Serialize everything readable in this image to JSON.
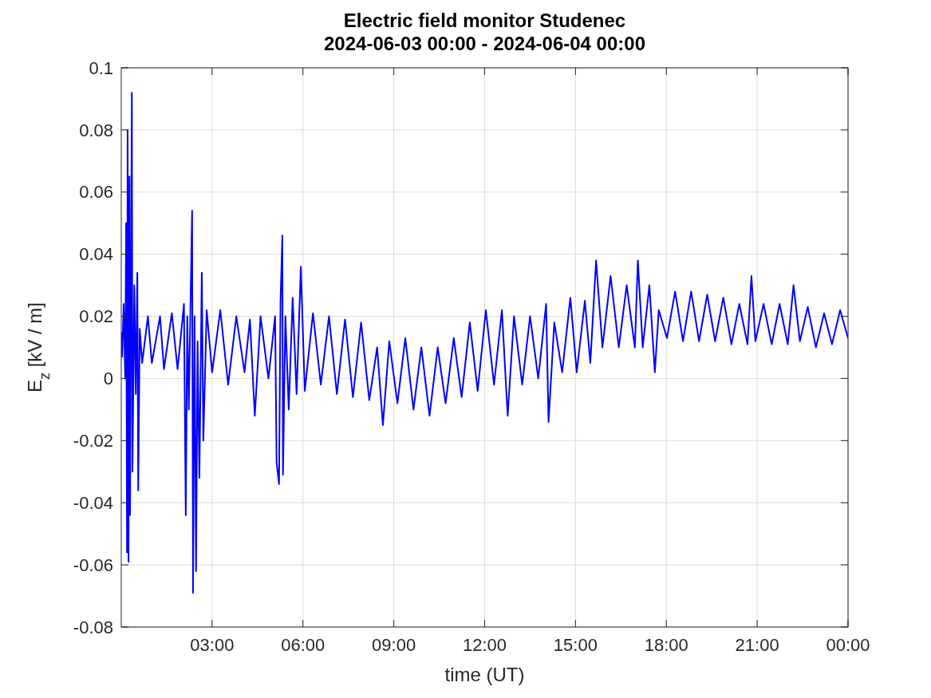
{
  "chart_data": {
    "type": "line",
    "title": "Electric field monitor Studenec",
    "subtitle": "2024-06-03 00:00 - 2024-06-04 00:00",
    "xlabel": "time (UT)",
    "ylabel": "E$_{z}$ [kV / m]",
    "xlim": [
      0,
      24
    ],
    "xticks": [
      {
        "value": 3,
        "label": "03:00"
      },
      {
        "value": 6,
        "label": "06:00"
      },
      {
        "value": 9,
        "label": "09:00"
      },
      {
        "value": 12,
        "label": "12:00"
      },
      {
        "value": 15,
        "label": "15:00"
      },
      {
        "value": 18,
        "label": "18:00"
      },
      {
        "value": 21,
        "label": "21:00"
      },
      {
        "value": 24,
        "label": "00:00"
      }
    ],
    "ylim": [
      -0.08,
      0.1
    ],
    "yticks": [
      -0.08,
      -0.06,
      -0.04,
      -0.02,
      0,
      0.02,
      0.04,
      0.06,
      0.08,
      0.1
    ],
    "grid": true,
    "line_style": "solid",
    "marker": "none",
    "series": [
      {
        "color": "#0000ff",
        "x": [
          0,
          0.03,
          0.08,
          0.13,
          0.16,
          0.19,
          0.21,
          0.24,
          0.27,
          0.29,
          0.35,
          0.37,
          0.43,
          0.48,
          0.53,
          0.56,
          0.61,
          0.69,
          0.88,
          1.01,
          1.28,
          1.41,
          1.67,
          1.86,
          2.07,
          2.13,
          2.18,
          2.23,
          2.29,
          2.34,
          2.37,
          2.42,
          2.47,
          2.52,
          2.58,
          2.66,
          2.71,
          2.82,
          3.0,
          3.27,
          3.53,
          3.8,
          4.07,
          4.25,
          4.41,
          4.6,
          4.86,
          5.08,
          5.13,
          5.21,
          5.26,
          5.32,
          5.34,
          5.42,
          5.53,
          5.66,
          5.79,
          5.93,
          6.06,
          6.33,
          6.59,
          6.86,
          7.12,
          7.39,
          7.65,
          7.92,
          8.19,
          8.45,
          8.64,
          8.85,
          9.12,
          9.38,
          9.65,
          9.91,
          10.18,
          10.45,
          10.71,
          10.98,
          11.24,
          11.51,
          11.77,
          12.04,
          12.31,
          12.57,
          12.76,
          12.97,
          13.24,
          13.5,
          13.77,
          14.03,
          14.11,
          14.3,
          14.56,
          14.83,
          15.04,
          15.31,
          15.49,
          15.68,
          15.89,
          16.16,
          16.43,
          16.69,
          16.96,
          17.06,
          17.22,
          17.44,
          17.62,
          17.75,
          18.02,
          18.29,
          18.55,
          18.82,
          19.08,
          19.35,
          19.61,
          19.88,
          20.15,
          20.41,
          20.68,
          20.81,
          20.94,
          21.21,
          21.48,
          21.74,
          22.01,
          22.2,
          22.41,
          22.67,
          22.94,
          23.21,
          23.47,
          23.74,
          24
        ],
        "values": [
          0.015,
          0.007,
          0.024,
          0,
          0.05,
          -0.056,
          0.08,
          -0.059,
          0.065,
          -0.044,
          0.092,
          -0.03,
          0.03,
          -0.005,
          0.034,
          -0.036,
          0.016,
          0.005,
          0.02,
          0.005,
          0.02,
          0.003,
          0.021,
          0.003,
          0.024,
          -0.044,
          0.02,
          -0.01,
          0.026,
          0.054,
          -0.069,
          0.02,
          -0.062,
          0.012,
          -0.032,
          0.034,
          -0.02,
          0.022,
          0.002,
          0.022,
          -0.002,
          0.02,
          0.002,
          0.019,
          -0.012,
          0.02,
          0,
          0.02,
          -0.027,
          -0.034,
          0.025,
          0.046,
          -0.031,
          0.02,
          -0.01,
          0.026,
          -0.005,
          0.036,
          -0.004,
          0.021,
          -0.002,
          0.02,
          -0.005,
          0.019,
          -0.006,
          0.018,
          -0.007,
          0.01,
          -0.015,
          0.012,
          -0.008,
          0.013,
          -0.01,
          0.01,
          -0.012,
          0.01,
          -0.008,
          0.013,
          -0.006,
          0.018,
          -0.004,
          0.022,
          -0.002,
          0.022,
          -0.012,
          0.02,
          -0.002,
          0.02,
          0,
          0.024,
          -0.014,
          0.018,
          0.002,
          0.026,
          0.002,
          0.025,
          0.005,
          0.038,
          0.01,
          0.033,
          0.01,
          0.03,
          0.01,
          0.038,
          0.01,
          0.03,
          0.002,
          0.022,
          0.013,
          0.028,
          0.012,
          0.028,
          0.012,
          0.027,
          0.012,
          0.026,
          0.011,
          0.024,
          0.011,
          0.033,
          0.012,
          0.024,
          0.011,
          0.024,
          0.011,
          0.03,
          0.012,
          0.023,
          0.01,
          0.021,
          0.011,
          0.022,
          0.013
        ]
      }
    ]
  }
}
